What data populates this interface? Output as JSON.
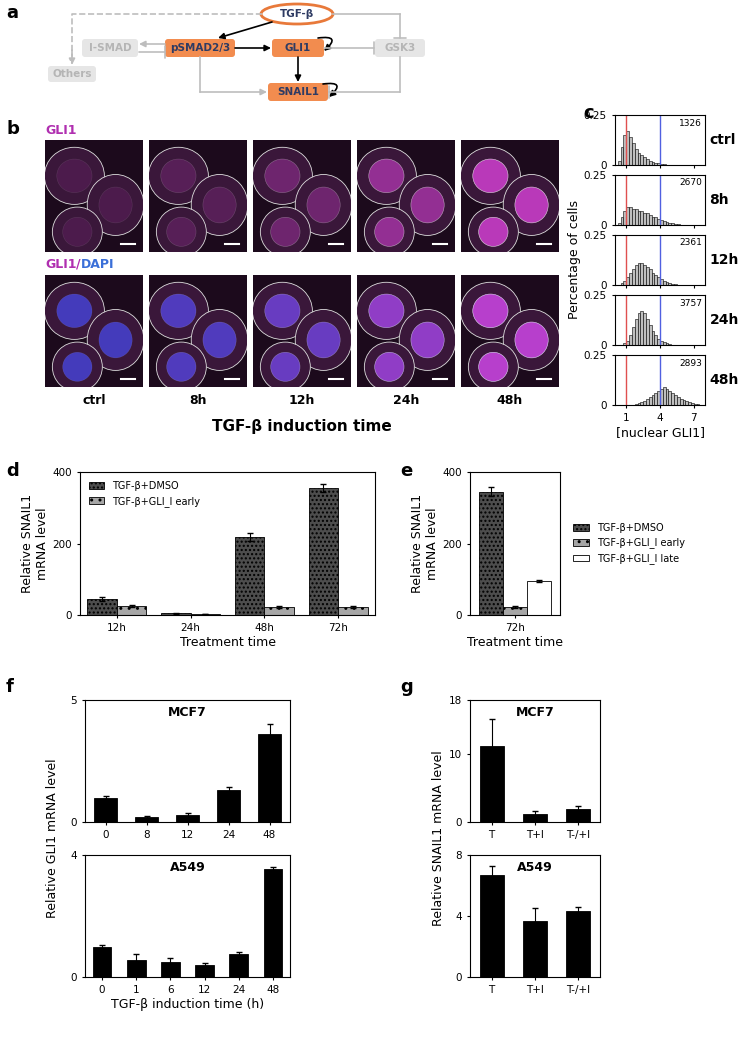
{
  "panel_labels": [
    "a",
    "b",
    "c",
    "d",
    "e",
    "f",
    "g"
  ],
  "diagram": {
    "nodes": [
      {
        "label": "TGF-β",
        "color": "#e8793a",
        "text_color": "#2e3b63"
      },
      {
        "label": "pSMAD2/3",
        "color": "#f28c4f",
        "text_color": "#2e3b63"
      },
      {
        "label": "GLI1",
        "color": "#f28c4f",
        "text_color": "#2e3b63"
      },
      {
        "label": "SNAIL1",
        "color": "#f28c4f",
        "text_color": "#2e3b63"
      },
      {
        "label": "I-SMAD",
        "color": "#e6e6e6",
        "text_color": "#b5b5b5"
      },
      {
        "label": "GSK3",
        "color": "#e6e6e6",
        "text_color": "#b5b5b5"
      },
      {
        "label": "Others",
        "color": "#e6e6e6",
        "text_color": "#b5b5b5"
      }
    ]
  },
  "images": {
    "row_labels": [
      [
        {
          "text": "GLI1",
          "color": "#b02fb0"
        }
      ],
      [
        {
          "text": "GLI1",
          "color": "#b02fb0"
        },
        {
          "text": "/",
          "color": "#b02fb0"
        },
        {
          "text": "DAPI",
          "color": "#3a6fd8"
        }
      ]
    ],
    "columns": [
      "ctrl",
      "8h",
      "12h",
      "24h",
      "48h"
    ],
    "xlabel": "TGF-β induction time"
  },
  "chart_data": [
    {
      "type": "histogram",
      "title": "ctrl",
      "n": 1326,
      "color": "#bfbfbf",
      "thresholds": [
        1,
        4
      ],
      "bins": [
        0,
        0.25,
        0.5,
        0.75,
        1,
        1.25,
        1.5,
        1.75,
        2,
        2.25,
        2.5,
        2.75,
        3,
        3.25,
        3.5,
        3.75,
        4,
        4.25,
        4.5,
        4.75,
        5,
        5.25,
        5.5,
        5.75,
        6,
        6.25,
        6.5,
        6.75,
        7,
        7.25,
        7.5,
        7.75,
        8
      ],
      "counts": [
        0,
        0.02,
        0.09,
        0.15,
        0.17,
        0.14,
        0.11,
        0.08,
        0.06,
        0.05,
        0.04,
        0.03,
        0.02,
        0.015,
        0.01,
        0.01,
        0.005,
        0.005,
        0,
        0,
        0,
        0,
        0,
        0,
        0,
        0,
        0,
        0,
        0,
        0,
        0,
        0
      ],
      "xlim": [
        0,
        8
      ],
      "ylim": [
        0,
        0.25
      ],
      "xticks": [
        1,
        4,
        7
      ],
      "yticks": [
        0,
        0.25
      ],
      "tick_labels": "y"
    },
    {
      "type": "histogram",
      "title": "8h",
      "n": 2670,
      "color": "#bfbfbf",
      "thresholds": [
        1,
        4
      ],
      "bins": [
        0,
        0.25,
        0.5,
        0.75,
        1,
        1.25,
        1.5,
        1.75,
        2,
        2.25,
        2.5,
        2.75,
        3,
        3.25,
        3.5,
        3.75,
        4,
        4.25,
        4.5,
        4.75,
        5,
        5.25,
        5.5,
        5.75,
        6,
        6.25,
        6.5,
        6.75,
        7,
        7.25,
        7.5,
        7.75,
        8
      ],
      "counts": [
        0,
        0.01,
        0.04,
        0.07,
        0.09,
        0.09,
        0.08,
        0.08,
        0.07,
        0.07,
        0.06,
        0.06,
        0.05,
        0.04,
        0.04,
        0.03,
        0.025,
        0.02,
        0.015,
        0.01,
        0.01,
        0.005,
        0.005,
        0,
        0,
        0,
        0,
        0,
        0,
        0,
        0,
        0
      ],
      "xlim": [
        0,
        8
      ],
      "ylim": [
        0,
        0.25
      ],
      "xticks": [
        1,
        4,
        7
      ],
      "yticks": [
        0,
        0.25
      ],
      "tick_labels": "y"
    },
    {
      "type": "histogram",
      "title": "12h",
      "n": 2361,
      "color": "#bfbfbf",
      "thresholds": [
        1,
        4
      ],
      "ylabel": "Percentage of cells",
      "bins": [
        0,
        0.25,
        0.5,
        0.75,
        1,
        1.25,
        1.5,
        1.75,
        2,
        2.25,
        2.5,
        2.75,
        3,
        3.25,
        3.5,
        3.75,
        4,
        4.25,
        4.5,
        4.75,
        5,
        5.25,
        5.5,
        5.75,
        6,
        6.25,
        6.5,
        6.75,
        7,
        7.25,
        7.5,
        7.75,
        8
      ],
      "counts": [
        0,
        0,
        0.01,
        0.02,
        0.04,
        0.06,
        0.08,
        0.1,
        0.11,
        0.11,
        0.1,
        0.09,
        0.08,
        0.06,
        0.05,
        0.04,
        0.03,
        0.02,
        0.015,
        0.01,
        0.005,
        0.005,
        0,
        0,
        0,
        0,
        0,
        0,
        0,
        0,
        0,
        0
      ],
      "xlim": [
        0,
        8
      ],
      "ylim": [
        0,
        0.25
      ],
      "xticks": [
        1,
        4,
        7
      ],
      "yticks": [
        0,
        0.25
      ],
      "tick_labels": "y"
    },
    {
      "type": "histogram",
      "title": "24h",
      "n": 3757,
      "color": "#bfbfbf",
      "thresholds": [
        1,
        4
      ],
      "bins": [
        0,
        0.25,
        0.5,
        0.75,
        1,
        1.25,
        1.5,
        1.75,
        2,
        2.25,
        2.5,
        2.75,
        3,
        3.25,
        3.5,
        3.75,
        4,
        4.25,
        4.5,
        4.75,
        5,
        5.25,
        5.5,
        5.75,
        6,
        6.25,
        6.5,
        6.75,
        7,
        7.25,
        7.5,
        7.75,
        8
      ],
      "counts": [
        0,
        0,
        0,
        0.01,
        0.02,
        0.05,
        0.09,
        0.13,
        0.16,
        0.17,
        0.16,
        0.13,
        0.1,
        0.07,
        0.05,
        0.03,
        0.02,
        0.015,
        0.01,
        0.005,
        0,
        0,
        0,
        0,
        0,
        0,
        0,
        0,
        0,
        0,
        0,
        0
      ],
      "xlim": [
        0,
        8
      ],
      "ylim": [
        0,
        0.25
      ],
      "xticks": [
        1,
        4,
        7
      ],
      "yticks": [
        0,
        0.25
      ],
      "tick_labels": "y"
    },
    {
      "type": "histogram",
      "title": "48h",
      "n": 2893,
      "color": "#bfbfbf",
      "thresholds": [
        1,
        4
      ],
      "xlabel": "[nuclear GLI1]",
      "bins": [
        0,
        0.25,
        0.5,
        0.75,
        1,
        1.25,
        1.5,
        1.75,
        2,
        2.25,
        2.5,
        2.75,
        3,
        3.25,
        3.5,
        3.75,
        4,
        4.25,
        4.5,
        4.75,
        5,
        5.25,
        5.5,
        5.75,
        6,
        6.25,
        6.5,
        6.75,
        7,
        7.25,
        7.5,
        7.75,
        8
      ],
      "counts": [
        0,
        0,
        0,
        0,
        0,
        0,
        0,
        0.005,
        0.01,
        0.015,
        0.02,
        0.03,
        0.04,
        0.05,
        0.06,
        0.07,
        0.08,
        0.09,
        0.08,
        0.07,
        0.06,
        0.05,
        0.04,
        0.03,
        0.025,
        0.02,
        0.015,
        0.01,
        0.005,
        0.005,
        0,
        0
      ],
      "xlim": [
        0,
        8
      ],
      "ylim": [
        0,
        0.25
      ],
      "xticks": [
        1,
        4,
        7
      ],
      "yticks": [
        0,
        0.25
      ]
    },
    {
      "type": "bar",
      "categories": [
        "12h",
        "24h",
        "48h",
        "72h"
      ],
      "series": [
        {
          "name": "TGF-β+DMSO",
          "color": "#4d4d4d",
          "values": [
            45,
            5,
            218,
            355
          ],
          "errors": [
            5,
            1,
            12,
            12
          ]
        },
        {
          "name": "TGF-β+GLI_I early",
          "color": "#a6a6a6",
          "values": [
            25,
            3,
            22,
            22
          ],
          "errors": [
            3,
            1,
            3,
            3
          ]
        }
      ],
      "xlabel": "Treatment time",
      "ylabel": "Relative SNAIL1\nmRNA level",
      "ylim": [
        0,
        400
      ],
      "yticks": [
        0,
        200,
        400
      ],
      "legend": "upper left"
    },
    {
      "type": "bar",
      "categories": [
        "72h"
      ],
      "series": [
        {
          "name": "TGF-β+DMSO",
          "color": "#4d4d4d",
          "values": [
            345
          ],
          "errors": [
            12
          ]
        },
        {
          "name": "TGF-β+GLI_I early",
          "color": "#a6a6a6",
          "values": [
            22
          ],
          "errors": [
            3
          ]
        },
        {
          "name": "TGF-β+GLI_I late",
          "color": "#ffffff",
          "values": [
            95
          ],
          "errors": [
            4
          ]
        }
      ],
      "xlabel": "Treatment time",
      "ylabel": "Relative SNAIL1\nmRNA level",
      "ylim": [
        0,
        400
      ],
      "yticks": [
        0,
        200,
        400
      ],
      "legend": "center left"
    },
    {
      "type": "bar",
      "title": "MCF7",
      "categories": [
        "0",
        "8",
        "12",
        "24",
        "48"
      ],
      "values": [
        1,
        0.2,
        0.3,
        1.3,
        3.6
      ],
      "errors": [
        0.05,
        0.05,
        0.08,
        0.15,
        0.4
      ],
      "color": "#000000",
      "ylim": [
        0,
        5
      ],
      "yticks": [
        0,
        5
      ],
      "ylabel": "Relative GLI1 mRNA level"
    },
    {
      "type": "bar",
      "title": "A549",
      "categories": [
        "0",
        "1",
        "6",
        "12",
        "24",
        "48"
      ],
      "values": [
        1,
        0.55,
        0.5,
        0.4,
        0.75,
        3.55
      ],
      "errors": [
        0.05,
        0.2,
        0.12,
        0.05,
        0.08,
        0.05
      ],
      "color": "#000000",
      "ylim": [
        0,
        4
      ],
      "yticks": [
        0,
        4
      ],
      "xlabel": "TGF-β induction time (h)"
    },
    {
      "type": "bar",
      "title": "MCF7",
      "categories": [
        "T",
        "T+I",
        "T-/+I"
      ],
      "values": [
        11.2,
        1.2,
        1.9
      ],
      "errors": [
        4,
        0.4,
        0.4
      ],
      "color": "#000000",
      "ylim": [
        0,
        18
      ],
      "yticks": [
        0,
        10,
        18
      ],
      "ylabel": "Relative SNAIL1 mRNA level"
    },
    {
      "type": "bar",
      "title": "A549",
      "categories": [
        "T",
        "T+I",
        "T-/+I"
      ],
      "values": [
        6.7,
        3.7,
        4.3
      ],
      "errors": [
        0.6,
        0.8,
        0.3
      ],
      "color": "#000000",
      "ylim": [
        0,
        8
      ],
      "yticks": [
        0,
        4,
        8
      ]
    }
  ]
}
